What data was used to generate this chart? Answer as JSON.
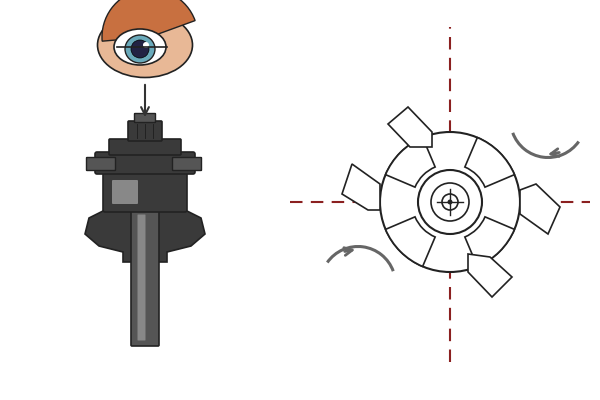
{
  "bg_color": "#ffffff",
  "dashed_line_color": "#8B2020",
  "arrow_color": "#666666",
  "tool_dark": "#3a3a3a",
  "tool_mid": "#555555",
  "tool_light": "#888888",
  "tool_lighter": "#aaaaaa",
  "skin_color": "#E8B896",
  "hair_color": "#c87040",
  "eye_blue": "#6aaabb",
  "eye_dark": "#222244",
  "outline_color": "#222222",
  "figsize": [
    6.0,
    4.0
  ],
  "dpi": 100
}
